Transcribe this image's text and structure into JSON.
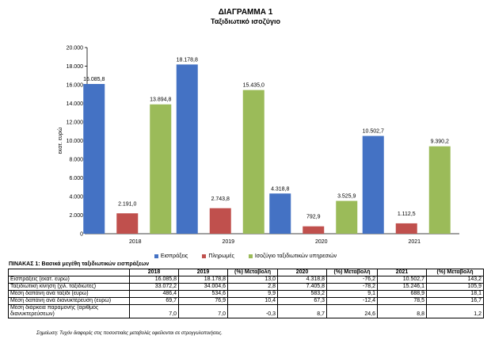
{
  "header": {
    "title": "ΔΙΑΓΡΑΜΜΑ 1",
    "subtitle": "Ταξιδιωτικό ισοζύγιο"
  },
  "chart_data": {
    "type": "bar",
    "title": "ΔΙΑΓΡΑΜΜΑ 1",
    "subtitle": "Ταξιδιωτικό ισοζύγιο",
    "ylabel": "εκατ. ευρώ",
    "xlabel": "",
    "ylim": [
      0,
      20000
    ],
    "yticks": [
      "0",
      "2.000",
      "4.000",
      "6.000",
      "8.000",
      "10.000",
      "12.000",
      "14.000",
      "16.000",
      "18.000",
      "20.000"
    ],
    "categories": [
      "2018",
      "2019",
      "2020",
      "2021"
    ],
    "legend_position": "bottom",
    "grid": false,
    "series": [
      {
        "name": "Εισπράξεις",
        "color": "#4472C4",
        "values": [
          16085.8,
          18178.8,
          4318.8,
          10502.7
        ],
        "labels": [
          "16.085,8",
          "18.178,8",
          "4.318,8",
          "10.502,7"
        ]
      },
      {
        "name": "Πληρωμές",
        "color": "#C0504D",
        "values": [
          2191.0,
          2743.8,
          792.9,
          1112.5
        ],
        "labels": [
          "2.191,0",
          "2.743,8",
          "792,9",
          "1.112,5"
        ]
      },
      {
        "name": "Ισοζύγιο ταξιδιωτικών υπηρεσιών",
        "color": "#9BBB59",
        "values": [
          13894.8,
          15435.0,
          3525.9,
          9390.2
        ],
        "labels": [
          "13.894,8",
          "15.435,0",
          "3.525,9",
          "9.390,2"
        ]
      }
    ]
  },
  "table": {
    "title": "ΠΙΝΑΚΑΣ 1: Βασικά μεγέθη ταξιδιωτικών εισπράξεων",
    "headers": [
      "",
      "2018",
      "2019",
      "(%) Μεταβολή",
      "2020",
      "(%) Μεταβολή",
      "2021",
      "(%) Μεταβολή"
    ],
    "rows": [
      [
        "Εισπράξεις (εκατ. ευρώ)",
        "16.085,8",
        "18.178,8",
        "13,0",
        "4.318,8",
        "-76,2",
        "10.502,7",
        "143,2"
      ],
      [
        "Ταξιδιωτική κίνηση (χιλ. ταξιδιώτες)",
        "33.072,2",
        "34.004,6",
        "2,8",
        "7.405,8",
        "-78,2",
        "15.246,1",
        "105,9"
      ],
      [
        "Μέση δαπάνη ανά ταξίδι (ευρώ)",
        "486,4",
        "534,6",
        "9,9",
        "583,2",
        "9,1",
        "688,9",
        "18,1"
      ],
      [
        "Μέση δαπάνη ανά διανυκτέρευση (ευρώ)",
        "69,7",
        "76,9",
        "10,4",
        "67,3",
        "-12,4",
        "78,5",
        "16,7"
      ],
      [
        "Μέση διάρκεια παραμονής (αριθμός διανυκτερεύσεων)",
        "7,0",
        "7,0",
        "-0,3",
        "8,7",
        "24,6",
        "8,8",
        "1,2"
      ]
    ]
  },
  "note": "Σημείωση: Τυχόν διαφορές στις ποσοστιαίες μεταβολές οφείλονται σε στρογγυλοποιήσεις."
}
